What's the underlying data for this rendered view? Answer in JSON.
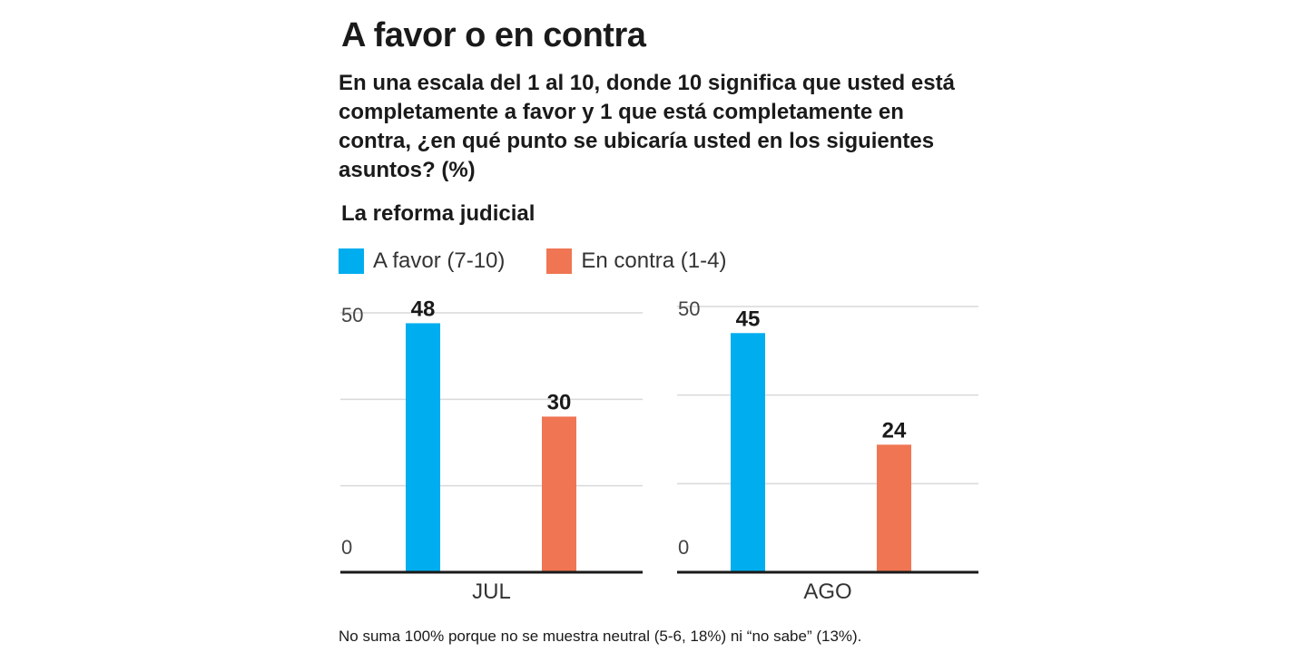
{
  "header": {
    "title": "A favor o en contra",
    "question": "En una escala del 1 al 10, donde 10 significa que usted está completamente a favor y 1 que está completamente en contra, ¿en qué punto se ubicaría usted en los siguientes asuntos? (%)",
    "subtitle": "La reforma judicial"
  },
  "legend": [
    {
      "label": "A favor (7-10)",
      "color": "#00adef"
    },
    {
      "label": "En contra (1-4)",
      "color": "#f07553"
    }
  ],
  "chart_data": [
    {
      "type": "bar",
      "categories": [
        "JUL"
      ],
      "series": [
        {
          "name": "A favor (7-10)",
          "values": [
            48
          ],
          "color": "#00adef"
        },
        {
          "name": "En contra (1-4)",
          "values": [
            30
          ],
          "color": "#f07553"
        }
      ],
      "ylim": [
        0,
        50
      ],
      "yticks": [
        0,
        50
      ],
      "grid": true
    },
    {
      "type": "bar",
      "categories": [
        "AGO"
      ],
      "series": [
        {
          "name": "A favor (7-10)",
          "values": [
            45
          ],
          "color": "#00adef"
        },
        {
          "name": "En contra (1-4)",
          "values": [
            24
          ],
          "color": "#f07553"
        }
      ],
      "ylim": [
        0,
        50
      ],
      "yticks": [
        0,
        50
      ],
      "grid": true
    }
  ],
  "footnote": "No suma 100% porque no se muestra neutral (5-6, 18%) ni “no sabe” (13%)."
}
